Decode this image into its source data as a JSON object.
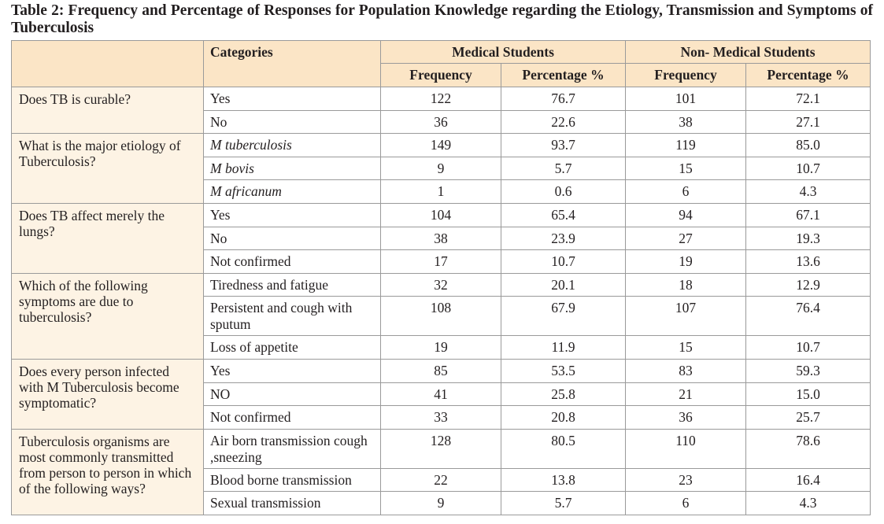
{
  "caption": "Table 2: Frequency and Percentage of Responses for Population Knowledge regarding the Etiology, Transmission and Symptoms of Tuberculosis",
  "header": {
    "categories": "Categories",
    "medical": "Medical Students",
    "non_medical": "Non- Medical Students",
    "frequency": "Frequency",
    "percentage": "Percentage %"
  },
  "groups": [
    {
      "question": "Does TB is curable?",
      "rows": [
        {
          "option": "Yes",
          "italic": false,
          "tall": false,
          "m_freq": "122",
          "m_pct": "76.7",
          "n_freq": "101",
          "n_pct": "72.1"
        },
        {
          "option": "No",
          "italic": false,
          "tall": false,
          "m_freq": "36",
          "m_pct": "22.6",
          "n_freq": "38",
          "n_pct": "27.1"
        }
      ]
    },
    {
      "question": "What is the major etiology of Tuberculosis?",
      "rows": [
        {
          "option": "M tuberculosis",
          "italic": true,
          "tall": false,
          "m_freq": "149",
          "m_pct": "93.7",
          "n_freq": "119",
          "n_pct": "85.0"
        },
        {
          "option": "M bovis",
          "italic": true,
          "tall": false,
          "m_freq": "9",
          "m_pct": "5.7",
          "n_freq": "15",
          "n_pct": "10.7"
        },
        {
          "option": "M africanum",
          "italic": true,
          "tall": false,
          "m_freq": "1",
          "m_pct": "0.6",
          "n_freq": "6",
          "n_pct": "4.3"
        }
      ]
    },
    {
      "question": "Does TB affect merely the lungs?",
      "rows": [
        {
          "option": "Yes",
          "italic": false,
          "tall": false,
          "m_freq": "104",
          "m_pct": "65.4",
          "n_freq": "94",
          "n_pct": "67.1"
        },
        {
          "option": "No",
          "italic": false,
          "tall": false,
          "m_freq": "38",
          "m_pct": "23.9",
          "n_freq": "27",
          "n_pct": "19.3"
        },
        {
          "option": "Not confirmed",
          "italic": false,
          "tall": false,
          "m_freq": "17",
          "m_pct": "10.7",
          "n_freq": "19",
          "n_pct": "13.6"
        }
      ]
    },
    {
      "question": "Which of the following symptoms are due to tuberculosis?",
      "rows": [
        {
          "option": "Tiredness and fatigue",
          "italic": false,
          "tall": false,
          "m_freq": "32",
          "m_pct": "20.1",
          "n_freq": "18",
          "n_pct": "12.9"
        },
        {
          "option": "Persistent and cough with sputum",
          "italic": false,
          "tall": true,
          "m_freq": "108",
          "m_pct": "67.9",
          "n_freq": "107",
          "n_pct": "76.4"
        },
        {
          "option": "Loss of appetite",
          "italic": false,
          "tall": false,
          "m_freq": "19",
          "m_pct": "11.9",
          "n_freq": "15",
          "n_pct": "10.7"
        }
      ]
    },
    {
      "question": "Does every person infected with M Tuberculosis become symptomatic?",
      "rows": [
        {
          "option": "Yes",
          "italic": false,
          "tall": false,
          "m_freq": "85",
          "m_pct": "53.5",
          "n_freq": "83",
          "n_pct": "59.3"
        },
        {
          "option": "NO",
          "italic": false,
          "tall": false,
          "m_freq": "41",
          "m_pct": "25.8",
          "n_freq": "21",
          "n_pct": "15.0"
        },
        {
          "option": "Not confirmed",
          "italic": false,
          "tall": false,
          "m_freq": "33",
          "m_pct": "20.8",
          "n_freq": "36",
          "n_pct": "25.7"
        }
      ]
    },
    {
      "question": "Tuberculosis organisms are most commonly transmitted from person to person in which of the following ways?",
      "rows": [
        {
          "option": "Air born transmission cough ,sneezing",
          "italic": false,
          "tall": true,
          "m_freq": "128",
          "m_pct": "80.5",
          "n_freq": "110",
          "n_pct": "78.6"
        },
        {
          "option": "Blood borne transmission",
          "italic": false,
          "tall": false,
          "m_freq": "22",
          "m_pct": "13.8",
          "n_freq": "23",
          "n_pct": "16.4"
        },
        {
          "option": "Sexual transmission",
          "italic": false,
          "tall": false,
          "m_freq": "9",
          "m_pct": "5.7",
          "n_freq": "6",
          "n_pct": "4.3"
        }
      ]
    }
  ]
}
